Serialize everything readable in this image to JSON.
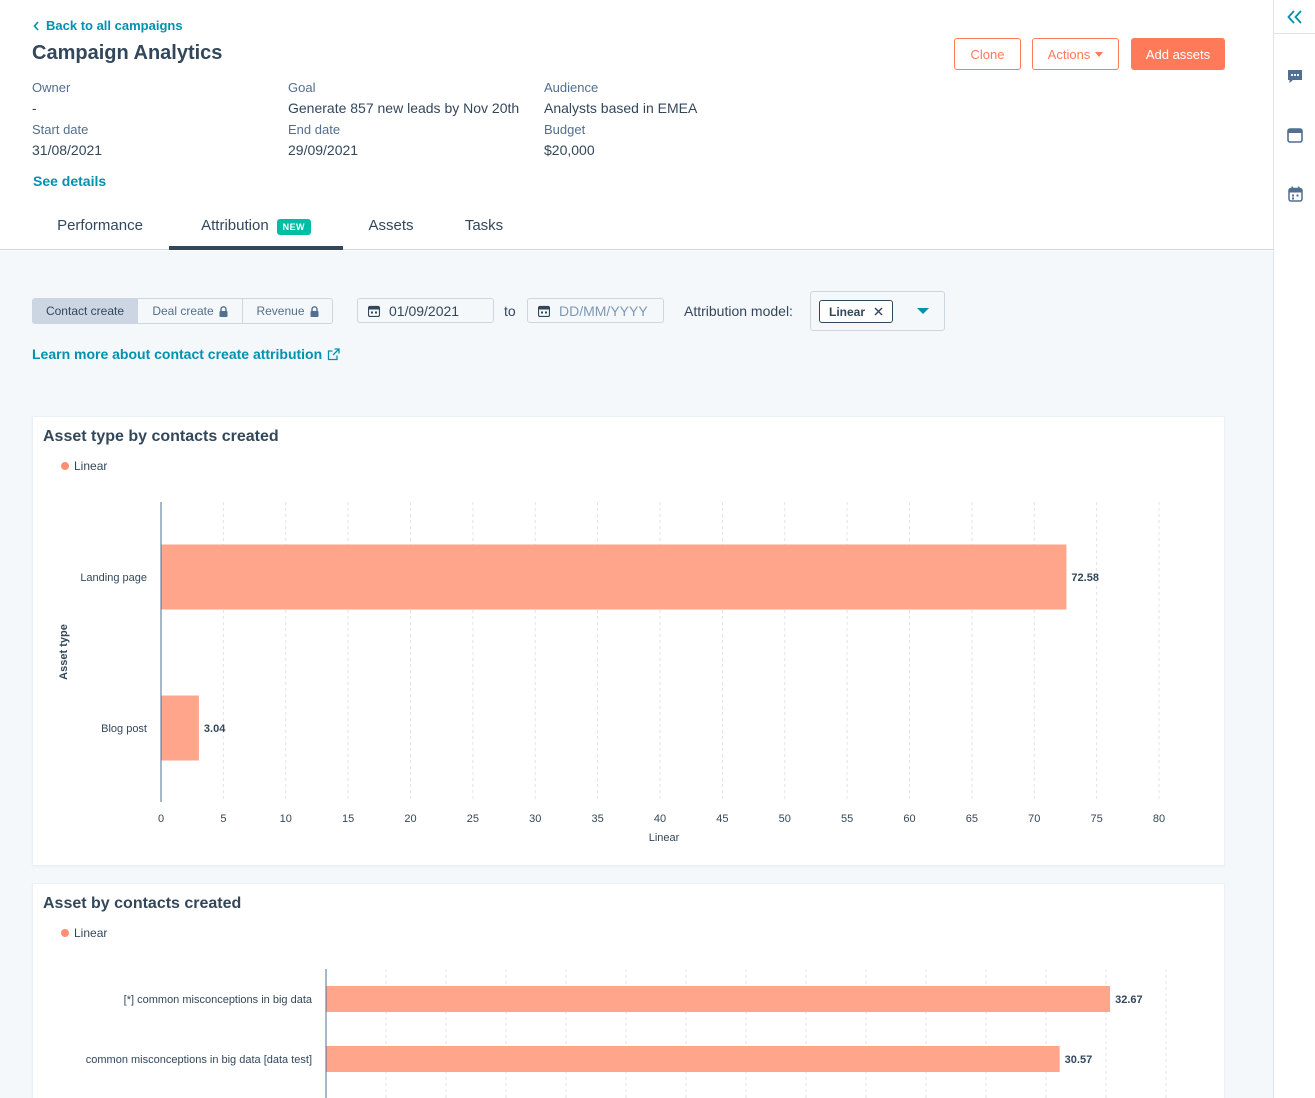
{
  "header": {
    "back_link": "Back to all campaigns",
    "title": "Campaign Analytics",
    "buttons": {
      "clone": "Clone",
      "actions": "Actions",
      "add_assets": "Add assets"
    },
    "meta": {
      "owner_label": "Owner",
      "owner_value": "-",
      "goal_label": "Goal",
      "goal_value": "Generate 857 new leads by Nov 20th",
      "audience_label": "Audience",
      "audience_value": "Analysts based in EMEA",
      "start_label": "Start date",
      "start_value": "31/08/2021",
      "end_label": "End date",
      "end_value": "29/09/2021",
      "budget_label": "Budget",
      "budget_value": "$20,000"
    },
    "see_details": "See details",
    "tabs": [
      {
        "label": "Performance"
      },
      {
        "label": "Attribution",
        "badge": "NEW",
        "active": true
      },
      {
        "label": "Assets"
      },
      {
        "label": "Tasks"
      }
    ]
  },
  "filters": {
    "segments": [
      {
        "label": "Contact create",
        "active": true,
        "locked": false
      },
      {
        "label": "Deal create",
        "active": false,
        "locked": true
      },
      {
        "label": "Revenue",
        "active": false,
        "locked": true
      }
    ],
    "start_date_value": "01/09/2021",
    "end_date_placeholder": "DD/MM/YYYY",
    "to_label": "to",
    "attribution_label": "Attribution model:",
    "attribution_tag": "Linear",
    "learn_more": "Learn more about contact create attribution"
  },
  "colors": {
    "accent": "#ff7a59",
    "bar": "#ffa58b",
    "link": "#0091ae",
    "badge": "#00bda5"
  },
  "icons": {
    "back": "chevron-left-icon",
    "actions_caret": "caret-down-icon",
    "calendar": "calendar-icon",
    "lock": "lock-icon",
    "remove": "close-icon",
    "external": "external-link-icon",
    "rail": [
      "double-chevron-left-icon",
      "chat-icon",
      "browser-window-icon",
      "calendar-icon"
    ]
  },
  "chart_data": [
    {
      "type": "bar",
      "orientation": "horizontal",
      "title": "Asset type by contacts created",
      "legend": [
        "Linear"
      ],
      "legend_position": "top-left",
      "categories": [
        "Landing page",
        "Blog post"
      ],
      "series": [
        {
          "name": "Linear",
          "values": [
            72.58,
            3.04
          ]
        }
      ],
      "value_labels": [
        "72.58",
        "3.04"
      ],
      "xlabel": "Linear",
      "ylabel": "Asset type",
      "xlim": [
        0,
        80
      ],
      "xticks": [
        "0",
        "5",
        "10",
        "15",
        "20",
        "25",
        "30",
        "35",
        "40",
        "45",
        "50",
        "55",
        "60",
        "65",
        "70",
        "75",
        "80"
      ],
      "grid": true
    },
    {
      "type": "bar",
      "orientation": "horizontal",
      "title": "Asset by contacts created",
      "legend": [
        "Linear"
      ],
      "legend_position": "top-left",
      "categories": [
        "[*] common misconceptions in big data",
        "common misconceptions in big data [data test]"
      ],
      "series": [
        {
          "name": "Linear",
          "values": [
            32.67,
            30.57
          ]
        }
      ],
      "value_labels": [
        "32.67",
        "30.57"
      ],
      "xlim": [
        0,
        35
      ],
      "grid": true
    }
  ]
}
